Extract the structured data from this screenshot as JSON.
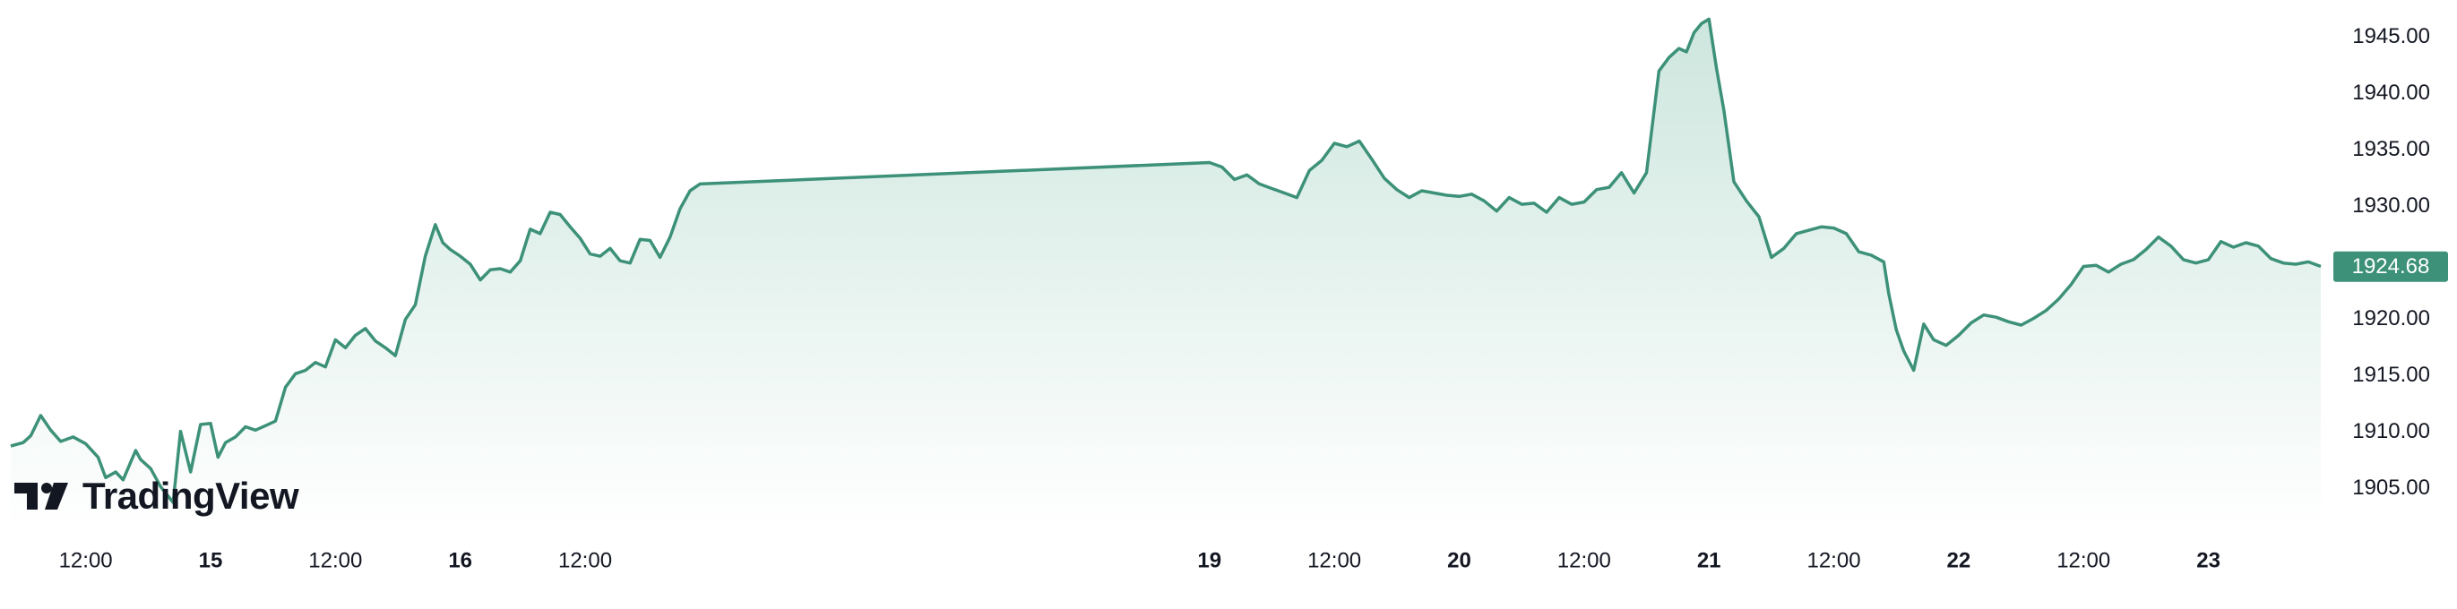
{
  "brand": {
    "name": "TradingView",
    "logo_icon": "tradingview-logo-icon"
  },
  "colors": {
    "line": "#3c9178",
    "fill_top": "#cde6de",
    "fill_bottom": "#ffffff",
    "tag_bg": "#3d9178",
    "text": "#131722"
  },
  "chart_data": {
    "type": "area",
    "title": "",
    "xlabel": "",
    "ylabel": "",
    "ylim": [
      1901.5,
      1947.5
    ],
    "y_ticks": [
      {
        "value": 1945,
        "label": "1945.00"
      },
      {
        "value": 1940,
        "label": "1940.00"
      },
      {
        "value": 1935,
        "label": "1935.00"
      },
      {
        "value": 1930,
        "label": "1930.00"
      },
      {
        "value": 1920,
        "label": "1920.00"
      },
      {
        "value": 1915,
        "label": "1915.00"
      },
      {
        "value": 1910,
        "label": "1910.00"
      },
      {
        "value": 1905,
        "label": "1905.00"
      }
    ],
    "x_range": [
      14.2,
      23.45
    ],
    "x_ticks": [
      {
        "value": 14.5,
        "label": "12:00",
        "bold": false
      },
      {
        "value": 15,
        "label": "15",
        "bold": true
      },
      {
        "value": 15.5,
        "label": "12:00",
        "bold": false
      },
      {
        "value": 16,
        "label": "16",
        "bold": true
      },
      {
        "value": 16.5,
        "label": "12:00",
        "bold": false
      },
      {
        "value": 19,
        "label": "19",
        "bold": true
      },
      {
        "value": 19.5,
        "label": "12:00",
        "bold": false
      },
      {
        "value": 20,
        "label": "20",
        "bold": true
      },
      {
        "value": 20.5,
        "label": "12:00",
        "bold": false
      },
      {
        "value": 21,
        "label": "21",
        "bold": true
      },
      {
        "value": 21.5,
        "label": "12:00",
        "bold": false
      },
      {
        "value": 22,
        "label": "22",
        "bold": true
      },
      {
        "value": 22.5,
        "label": "12:00",
        "bold": false
      },
      {
        "value": 23,
        "label": "23",
        "bold": true
      }
    ],
    "last_price": {
      "value": 1924.68,
      "label": "1924.68"
    },
    "grid": false,
    "series": [
      {
        "x": [
          14.2,
          14.25,
          14.28,
          14.32,
          14.36,
          14.4,
          14.45,
          14.5,
          14.55,
          14.58,
          14.62,
          14.65,
          14.7,
          14.72,
          14.76,
          14.8,
          14.85,
          14.88,
          14.92,
          14.96,
          15.0,
          15.03,
          15.06,
          15.1,
          15.14,
          15.18,
          15.22,
          15.26,
          15.3,
          15.34,
          15.38,
          15.42,
          15.46,
          15.5,
          15.54,
          15.58,
          15.62,
          15.66,
          15.7,
          15.74,
          15.78,
          15.82,
          15.86,
          15.9,
          15.93,
          15.96,
          16.0,
          16.04,
          16.08,
          16.12,
          16.16,
          16.2,
          16.24,
          16.28,
          16.32,
          16.36,
          16.4,
          16.44,
          16.48,
          16.52,
          16.56,
          16.6,
          16.64,
          16.68,
          16.72,
          16.76,
          16.8,
          16.84,
          16.88,
          16.92,
          16.96,
          19.0,
          19.05,
          19.1,
          19.15,
          19.2,
          19.25,
          19.3,
          19.35,
          19.4,
          19.45,
          19.5,
          19.55,
          19.6,
          19.65,
          19.7,
          19.75,
          19.8,
          19.85,
          19.9,
          19.95,
          20.0,
          20.05,
          20.1,
          20.15,
          20.2,
          20.25,
          20.3,
          20.35,
          20.4,
          20.45,
          20.5,
          20.55,
          20.6,
          20.65,
          20.7,
          20.75,
          20.8,
          20.84,
          20.88,
          20.91,
          20.94,
          20.97,
          21.0,
          21.03,
          21.06,
          21.1,
          21.15,
          21.2,
          21.25,
          21.3,
          21.35,
          21.4,
          21.45,
          21.5,
          21.55,
          21.6,
          21.65,
          21.7,
          21.72,
          21.75,
          21.78,
          21.82,
          21.86,
          21.9,
          21.95,
          22.0,
          22.05,
          22.1,
          22.15,
          22.2,
          22.25,
          22.3,
          22.35,
          22.4,
          22.45,
          22.5,
          22.55,
          22.6,
          22.65,
          22.7,
          22.75,
          22.8,
          22.85,
          22.9,
          22.95,
          23.0,
          23.05,
          23.1,
          23.15,
          23.2,
          23.25,
          23.3,
          23.35,
          23.4,
          23.45
        ],
        "y": [
          1908.8,
          1909.1,
          1909.7,
          1911.5,
          1910.2,
          1909.2,
          1909.6,
          1909.0,
          1907.8,
          1906.0,
          1906.5,
          1905.8,
          1908.4,
          1907.6,
          1906.8,
          1905.2,
          1903.8,
          1910.1,
          1906.5,
          1910.7,
          1910.8,
          1907.8,
          1909.1,
          1909.6,
          1910.5,
          1910.2,
          1910.6,
          1911.0,
          1914.0,
          1915.2,
          1915.5,
          1916.2,
          1915.8,
          1918.2,
          1917.5,
          1918.6,
          1919.2,
          1918.1,
          1917.5,
          1916.8,
          1920.0,
          1921.3,
          1925.6,
          1928.4,
          1926.8,
          1926.2,
          1925.6,
          1924.9,
          1923.5,
          1924.4,
          1924.5,
          1924.2,
          1925.2,
          1928.0,
          1927.6,
          1929.5,
          1929.3,
          1928.2,
          1927.2,
          1925.8,
          1925.6,
          1926.3,
          1925.2,
          1925.0,
          1927.1,
          1927.0,
          1925.5,
          1927.3,
          1929.8,
          1931.4,
          1932.0,
          1933.9,
          1933.5,
          1932.4,
          1932.8,
          1932.0,
          1931.6,
          1931.2,
          1930.8,
          1933.2,
          1934.1,
          1935.6,
          1935.3,
          1935.8,
          1934.2,
          1932.5,
          1931.5,
          1930.8,
          1931.4,
          1931.2,
          1931.0,
          1930.9,
          1931.1,
          1930.5,
          1929.6,
          1930.8,
          1930.2,
          1930.3,
          1929.5,
          1930.8,
          1930.2,
          1930.4,
          1931.5,
          1931.7,
          1933.0,
          1931.2,
          1933.0,
          1942.0,
          1943.2,
          1944.0,
          1943.7,
          1945.4,
          1946.2,
          1946.6,
          1942.3,
          1938.5,
          1932.2,
          1930.5,
          1929.1,
          1925.5,
          1926.3,
          1927.6,
          1927.9,
          1928.2,
          1928.1,
          1927.6,
          1926.0,
          1925.7,
          1925.1,
          1922.3,
          1919.1,
          1917.2,
          1915.5,
          1919.6,
          1918.2,
          1917.7,
          1918.6,
          1919.7,
          1920.4,
          1920.2,
          1919.8,
          1919.5,
          1920.1,
          1920.8,
          1921.8,
          1923.1,
          1924.7,
          1924.8,
          1924.2,
          1924.9,
          1925.3,
          1926.2,
          1927.3,
          1926.5,
          1925.3,
          1925.0,
          1925.3,
          1926.9,
          1926.4,
          1926.8,
          1926.5,
          1925.4,
          1925.0,
          1924.9,
          1925.1,
          1924.7
        ]
      }
    ]
  }
}
